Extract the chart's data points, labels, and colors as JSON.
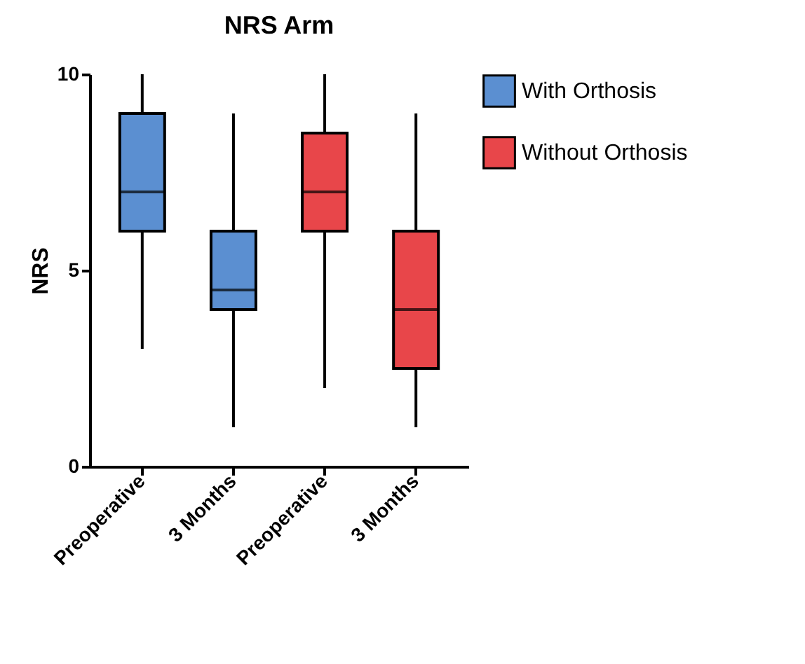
{
  "chart_data": {
    "type": "box",
    "title": "NRS Arm",
    "ylabel": "NRS",
    "categories": [
      "Preoperative",
      "3 Months",
      "Preoperative",
      "3 Months"
    ],
    "ylim": [
      0,
      10
    ],
    "yticks": [
      0,
      5,
      10
    ],
    "grid": false,
    "legend": "right",
    "series": [
      {
        "name": "With Orthosis",
        "color": "#5b8fd1",
        "boxes": [
          {
            "low": 3,
            "q1": 6,
            "median": 7,
            "q3": 9,
            "high": 10
          },
          {
            "low": 1,
            "q1": 4,
            "median": 4.5,
            "q3": 6,
            "high": 9
          },
          null,
          null
        ]
      },
      {
        "name": "Without Orthosis",
        "color": "#e8464a",
        "boxes": [
          null,
          null,
          {
            "low": 2,
            "q1": 6,
            "median": 7,
            "q3": 8.5,
            "high": 10
          },
          {
            "low": 1,
            "q1": 2.5,
            "median": 4,
            "q3": 6,
            "high": 9
          }
        ]
      }
    ]
  }
}
